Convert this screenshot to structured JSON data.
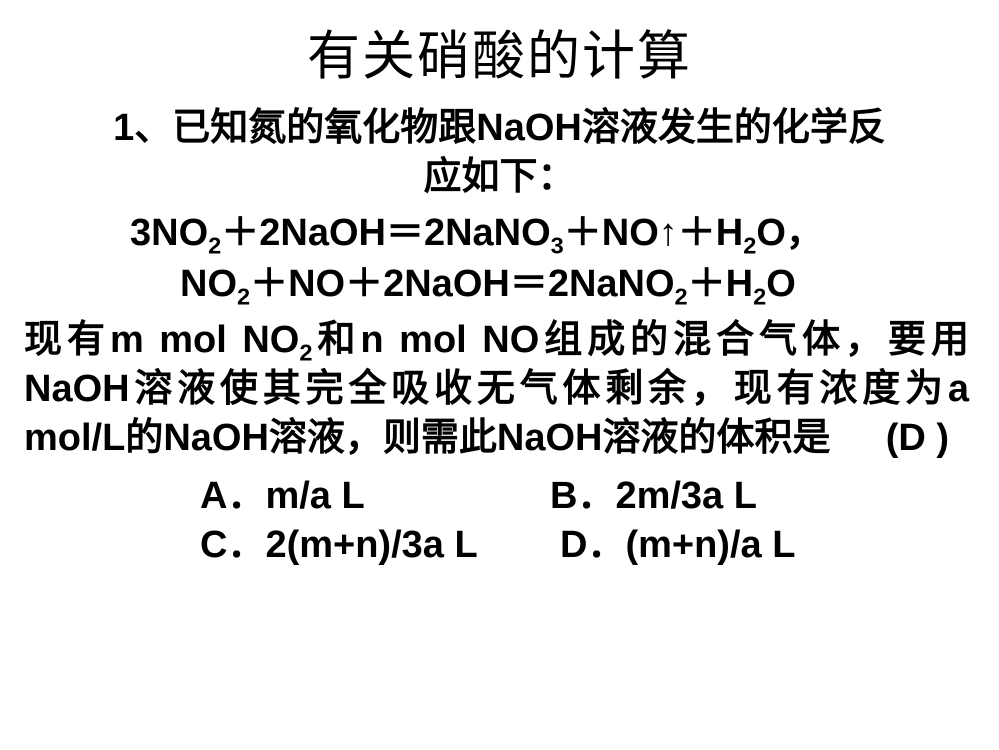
{
  "title": "有关硝酸的计算",
  "intro_line1": "1、已知氮的氧化物跟NaOH溶液发生的化学反",
  "intro_line2": "应如下：",
  "eq1_parts": {
    "a": "3NO",
    "b": "＋2NaOH＝2NaNO",
    "c": "＋NO↑＋H",
    "d": "O，"
  },
  "eq2_parts": {
    "a": "NO",
    "b": "＋NO＋2NaOH＝2NaNO",
    "c": "＋H",
    "d": "O"
  },
  "main_parts": {
    "a": "现有m mol NO",
    "b": "和n mol NO组成的混合气体，要用NaOH溶液使其完全吸收无气体剩余，现有浓度为a mol/L的NaOH溶液，则需此NaOH溶液的体积是"
  },
  "answer_mark": "(D )",
  "options": {
    "A": "A．m/a L",
    "B": "B．2m/3a L",
    "C": "C．2(m+n)/3a L",
    "D": "D．(m+n)/a L"
  },
  "subs": {
    "two": "2",
    "three": "3"
  },
  "style": {
    "slide_width": 999,
    "slide_height": 750,
    "background_color": "#ffffff",
    "text_color": "#000000",
    "title_fontsize": 53,
    "body_fontsize": 38,
    "title_font": "SimSun",
    "body_font": "Microsoft YaHei",
    "body_fontweight": 700
  }
}
